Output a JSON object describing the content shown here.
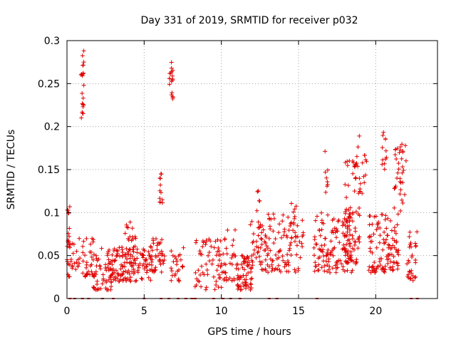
{
  "chart_data": {
    "type": "scatter",
    "title": "Day 331 of 2019, SRMTID for receiver p032",
    "xlabel": "GPS time / hours",
    "ylabel": "SRMTID / TECUs",
    "xlim": [
      0,
      24
    ],
    "ylim": [
      0,
      0.3
    ],
    "xticks": [
      0,
      5,
      10,
      15,
      20
    ],
    "xtick_labels": [
      "0",
      "5",
      "10",
      "15",
      "20"
    ],
    "yticks": [
      0,
      0.05,
      0.1,
      0.15,
      0.2,
      0.25,
      0.3
    ],
    "ytick_labels": [
      "0",
      "0.05",
      "0.1",
      "0.15",
      "0.2",
      "0.25",
      "0.3"
    ],
    "grid": true,
    "marker": "+",
    "color": "#e00000",
    "series": [
      {
        "name": "SRMTID",
        "clusters": [
          {
            "x": [
              0.0,
              1.8
            ],
            "y": [
              0.025,
              0.07
            ],
            "n": 60
          },
          {
            "x": [
              0.0,
              0.2
            ],
            "y": [
              0.06,
              0.11
            ],
            "n": 12
          },
          {
            "x": [
              0.9,
              1.1
            ],
            "y": [
              0.21,
              0.29
            ],
            "n": 22
          },
          {
            "x": [
              1.7,
              3.0
            ],
            "y": [
              0.01,
              0.06
            ],
            "n": 60
          },
          {
            "x": [
              2.8,
              5.5
            ],
            "y": [
              0.02,
              0.06
            ],
            "n": 120
          },
          {
            "x": [
              3.5,
              4.5
            ],
            "y": [
              0.05,
              0.09
            ],
            "n": 20
          },
          {
            "x": [
              5.0,
              6.4
            ],
            "y": [
              0.03,
              0.07
            ],
            "n": 50
          },
          {
            "x": [
              6.0,
              6.2
            ],
            "y": [
              0.11,
              0.15
            ],
            "n": 12
          },
          {
            "x": [
              6.6,
              6.9
            ],
            "y": [
              0.23,
              0.28
            ],
            "n": 18
          },
          {
            "x": [
              6.7,
              7.6
            ],
            "y": [
              0.02,
              0.06
            ],
            "n": 25
          },
          {
            "x": [
              8.3,
              10.0
            ],
            "y": [
              0.01,
              0.07
            ],
            "n": 60
          },
          {
            "x": [
              10.0,
              11.0
            ],
            "y": [
              0.02,
              0.08
            ],
            "n": 35
          },
          {
            "x": [
              11.0,
              12.0
            ],
            "y": [
              0.01,
              0.05
            ],
            "n": 60
          },
          {
            "x": [
              11.8,
              13.0
            ],
            "y": [
              0.03,
              0.09
            ],
            "n": 50
          },
          {
            "x": [
              12.3,
              12.5
            ],
            "y": [
              0.1,
              0.13
            ],
            "n": 5
          },
          {
            "x": [
              13.0,
              15.3
            ],
            "y": [
              0.03,
              0.1
            ],
            "n": 90
          },
          {
            "x": [
              14.5,
              15.0
            ],
            "y": [
              0.08,
              0.12
            ],
            "n": 8
          },
          {
            "x": [
              16.0,
              18.5
            ],
            "y": [
              0.03,
              0.1
            ],
            "n": 130
          },
          {
            "x": [
              16.7,
              16.9
            ],
            "y": [
              0.12,
              0.18
            ],
            "n": 8
          },
          {
            "x": [
              18.0,
              19.0
            ],
            "y": [
              0.04,
              0.16
            ],
            "n": 70
          },
          {
            "x": [
              18.5,
              19.6
            ],
            "y": [
              0.12,
              0.19
            ],
            "n": 20
          },
          {
            "x": [
              19.5,
              21.5
            ],
            "y": [
              0.03,
              0.1
            ],
            "n": 110
          },
          {
            "x": [
              20.4,
              20.7
            ],
            "y": [
              0.15,
              0.21
            ],
            "n": 12
          },
          {
            "x": [
              21.2,
              22.0
            ],
            "y": [
              0.1,
              0.18
            ],
            "n": 35
          },
          {
            "x": [
              22.0,
              22.7
            ],
            "y": [
              0.02,
              0.08
            ],
            "n": 30
          }
        ],
        "zero_marks_x": [
          0.2,
          0.5,
          1.0,
          1.4,
          2.3,
          3.0,
          5.0,
          6.1,
          6.6,
          7.2,
          7.7,
          8.1,
          8.3,
          9.5,
          10.1,
          10.6,
          11.2,
          13.1,
          13.6,
          16.2,
          22.3,
          22.7
        ]
      }
    ]
  }
}
